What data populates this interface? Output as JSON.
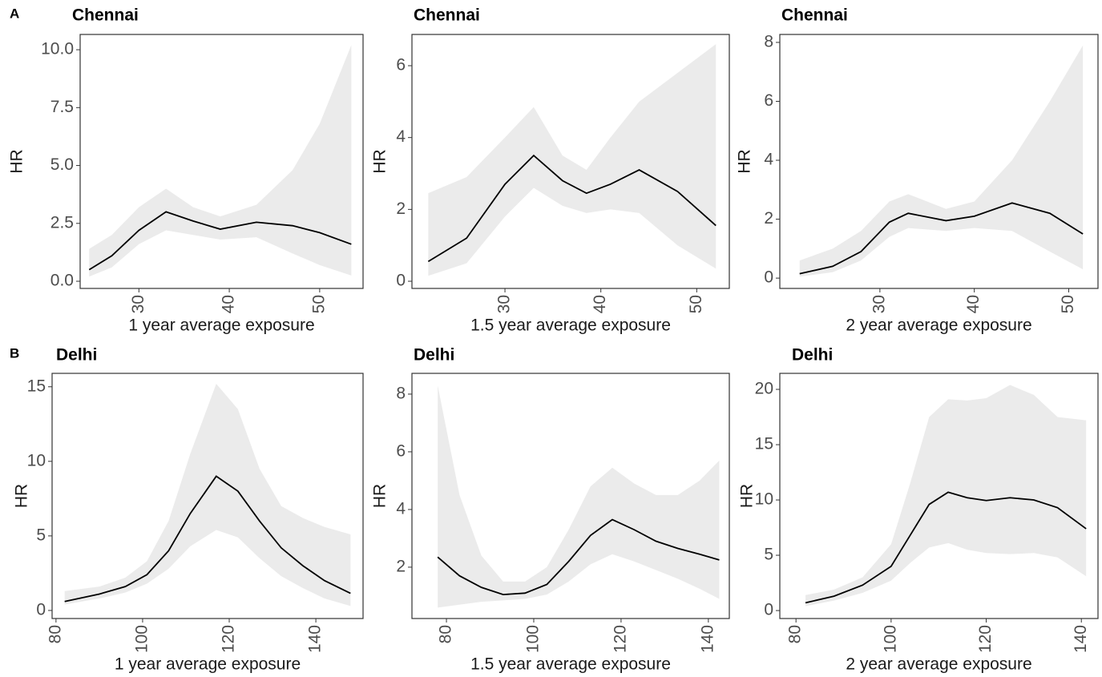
{
  "chart_data": [
    {
      "type": "line",
      "tag": "A",
      "title": "Chennai",
      "xlabel": "1 year average exposure",
      "ylabel": "HR",
      "x": [
        24.5,
        27,
        30,
        33,
        36,
        39,
        43,
        47,
        50,
        53.5
      ],
      "values": [
        0.5,
        1.1,
        2.2,
        3.0,
        2.6,
        2.25,
        2.55,
        2.4,
        2.1,
        1.6
      ],
      "lower": [
        0.2,
        0.6,
        1.6,
        2.2,
        2.0,
        1.8,
        1.9,
        1.2,
        0.7,
        0.25
      ],
      "upper": [
        1.4,
        2.0,
        3.2,
        4.0,
        3.2,
        2.8,
        3.3,
        4.8,
        6.8,
        10.2
      ],
      "color": "#000000",
      "band_color": "#ebebeb",
      "xlim": [
        23.5,
        54.8
      ],
      "ylim": [
        -0.31,
        10.66
      ],
      "xticks": [
        30,
        40,
        50
      ],
      "yticks": [
        {
          "value": 0,
          "label": "0.0"
        },
        {
          "value": 2.5,
          "label": "2.5"
        },
        {
          "value": 5,
          "label": "5.0"
        },
        {
          "value": 7.5,
          "label": "7.5"
        },
        {
          "value": 10,
          "label": "10.0"
        }
      ],
      "grid": false
    },
    {
      "type": "line",
      "title": "Chennai",
      "xlabel": "1.5 year average exposure",
      "ylabel": "HR",
      "x": [
        22,
        26,
        30,
        33,
        36,
        38.5,
        41,
        44,
        48,
        52
      ],
      "values": [
        0.55,
        1.2,
        2.7,
        3.5,
        2.8,
        2.45,
        2.7,
        3.1,
        2.5,
        1.55
      ],
      "lower": [
        0.15,
        0.5,
        1.8,
        2.6,
        2.1,
        1.9,
        2.0,
        1.9,
        1.0,
        0.35
      ],
      "upper": [
        2.45,
        2.9,
        4.0,
        4.85,
        3.5,
        3.1,
        4.0,
        5.0,
        5.8,
        6.6
      ],
      "color": "#000000",
      "band_color": "#ebebeb",
      "xlim": [
        20.3,
        53.4
      ],
      "ylim": [
        -0.2,
        6.87
      ],
      "xticks": [
        30,
        40,
        50
      ],
      "yticks": [
        0,
        2,
        4,
        6
      ],
      "grid": false
    },
    {
      "type": "line",
      "title": "Chennai",
      "xlabel": "2 year average exposure",
      "ylabel": "HR",
      "x": [
        21.5,
        25,
        28,
        31,
        33,
        37,
        40,
        44,
        48,
        51.5
      ],
      "values": [
        0.15,
        0.4,
        0.9,
        1.9,
        2.2,
        1.95,
        2.1,
        2.55,
        2.2,
        1.5
      ],
      "lower": [
        0.05,
        0.2,
        0.6,
        1.4,
        1.7,
        1.6,
        1.7,
        1.6,
        0.9,
        0.3
      ],
      "upper": [
        0.6,
        1.0,
        1.6,
        2.6,
        2.85,
        2.35,
        2.6,
        4.0,
        6.0,
        7.9
      ],
      "color": "#000000",
      "band_color": "#ebebeb",
      "xlim": [
        19.4,
        53.1
      ],
      "ylim": [
        -0.35,
        8.27
      ],
      "xticks": [
        30,
        40,
        50
      ],
      "yticks": [
        0,
        2,
        4,
        6,
        8
      ],
      "grid": false
    },
    {
      "type": "line",
      "tag": "B",
      "title": "Delhi",
      "xlabel": "1 year average exposure",
      "ylabel": "HR",
      "x": [
        82,
        90,
        96,
        101,
        106,
        111,
        117,
        122,
        127,
        132,
        137,
        142,
        148
      ],
      "values": [
        0.6,
        1.1,
        1.6,
        2.4,
        4.0,
        6.5,
        9.0,
        8.0,
        6.0,
        4.2,
        3.0,
        2.0,
        1.15
      ],
      "lower": [
        0.4,
        0.8,
        1.2,
        1.8,
        2.8,
        4.3,
        5.4,
        4.9,
        3.5,
        2.3,
        1.5,
        0.8,
        0.3
      ],
      "upper": [
        1.3,
        1.6,
        2.2,
        3.3,
        6.0,
        10.5,
        15.2,
        13.5,
        9.5,
        7.0,
        6.2,
        5.6,
        5.1
      ],
      "color": "#000000",
      "band_color": "#ebebeb",
      "xlim": [
        79.1,
        150.9
      ],
      "ylim": [
        -0.54,
        15.9
      ],
      "xticks": [
        80,
        100,
        120,
        140
      ],
      "yticks": [
        0,
        5,
        10,
        15
      ],
      "grid": false
    },
    {
      "type": "line",
      "title": "Delhi",
      "xlabel": "1.5 year average exposure",
      "ylabel": "HR",
      "x": [
        78,
        83,
        88,
        93,
        98,
        103,
        108,
        113,
        118,
        123,
        128,
        133,
        138,
        142.5
      ],
      "values": [
        2.35,
        1.7,
        1.3,
        1.05,
        1.1,
        1.4,
        2.2,
        3.1,
        3.65,
        3.3,
        2.9,
        2.65,
        2.45,
        2.25
      ],
      "lower": [
        0.6,
        0.7,
        0.8,
        0.85,
        0.9,
        1.05,
        1.5,
        2.1,
        2.45,
        2.2,
        1.9,
        1.6,
        1.25,
        0.9
      ],
      "upper": [
        8.3,
        4.5,
        2.4,
        1.5,
        1.5,
        2.0,
        3.3,
        4.8,
        5.45,
        4.9,
        4.5,
        4.5,
        5.0,
        5.7
      ],
      "color": "#000000",
      "band_color": "#ebebeb",
      "xlim": [
        72.1,
        144.8
      ],
      "ylim": [
        0.22,
        8.72
      ],
      "xticks": [
        80,
        100,
        120,
        140
      ],
      "yticks": [
        2,
        4,
        6,
        8
      ],
      "grid": false
    },
    {
      "type": "line",
      "title": "Delhi",
      "xlabel": "2 year average exposure",
      "ylabel": "HR",
      "x": [
        82,
        88,
        94,
        100,
        104,
        108,
        112,
        116,
        120,
        125,
        130,
        135,
        141
      ],
      "values": [
        0.7,
        1.3,
        2.3,
        4.0,
        6.8,
        9.6,
        10.7,
        10.2,
        9.95,
        10.2,
        10.0,
        9.3,
        7.4
      ],
      "lower": [
        0.4,
        0.9,
        1.6,
        2.7,
        4.3,
        5.7,
        6.1,
        5.5,
        5.2,
        5.1,
        5.2,
        4.8,
        3.1
      ],
      "upper": [
        1.4,
        1.9,
        3.0,
        6.0,
        11.5,
        17.5,
        19.1,
        19.0,
        19.2,
        20.4,
        19.5,
        17.5,
        17.2
      ],
      "color": "#000000",
      "band_color": "#ebebeb",
      "xlim": [
        76.6,
        143.5
      ],
      "ylim": [
        -0.72,
        21.45
      ],
      "xticks": [
        80,
        100,
        120,
        140
      ],
      "yticks": [
        0,
        5,
        10,
        15,
        20
      ],
      "grid": false
    }
  ]
}
